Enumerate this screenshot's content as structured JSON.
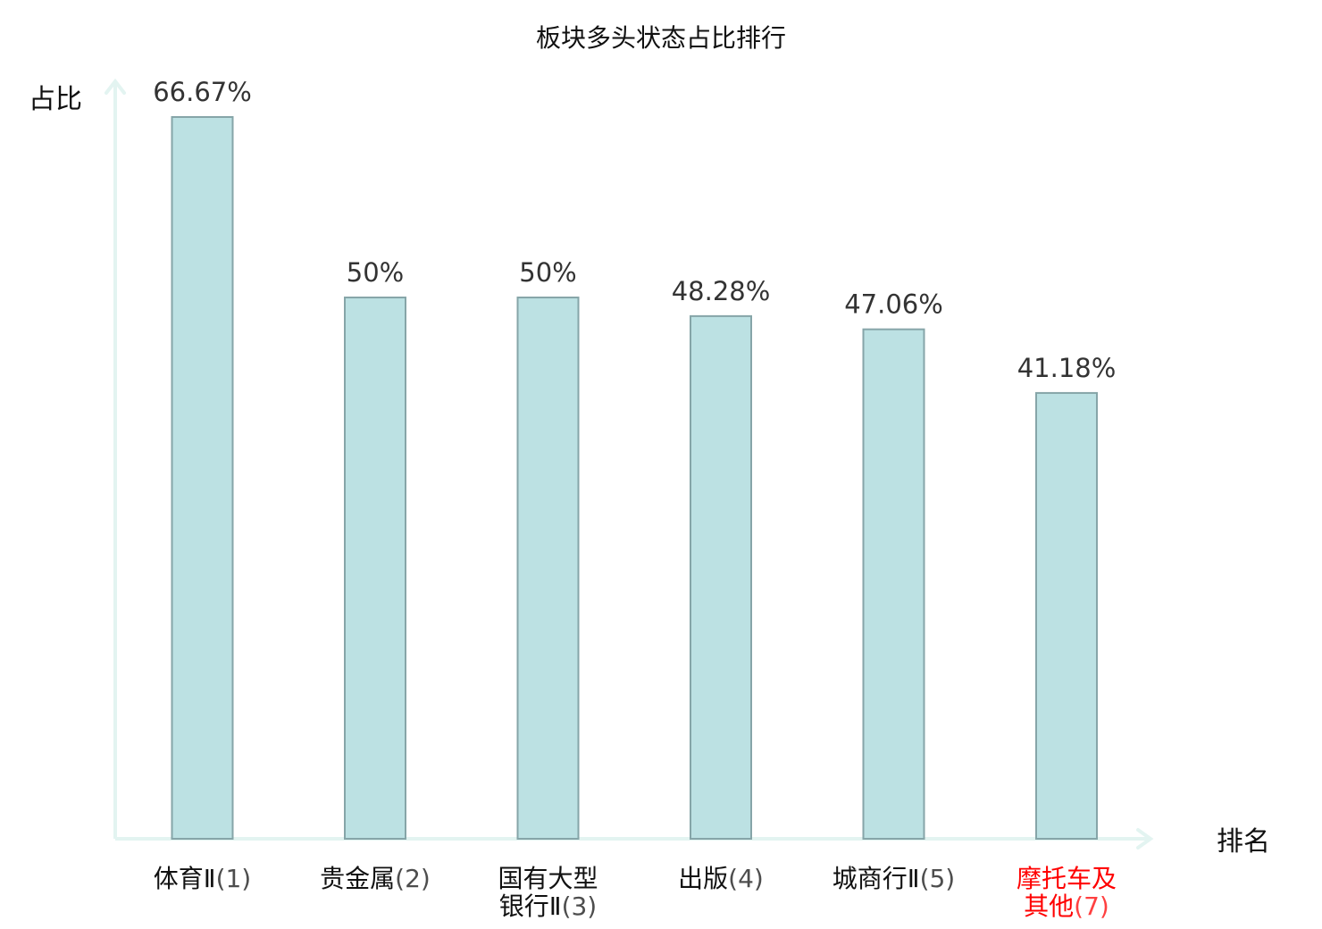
{
  "chart_data": {
    "type": "bar",
    "title": "板块多头状态占比排行",
    "xlabel": "排名",
    "ylabel": "占比",
    "ylim": [
      0,
      70
    ],
    "grid": false,
    "bar_color": "#bce1e3",
    "bar_border_color": "#86a5a8",
    "axis_color": "#e3f4f1",
    "highlight_color": "#ff0000",
    "label_color": "#111111",
    "categories": [
      {
        "lines": [
          "体育Ⅱ(1)"
        ],
        "name": "体育Ⅱ",
        "rank": "(1)",
        "highlight": false
      },
      {
        "lines": [
          "贵金属(2)"
        ],
        "name": "贵金属",
        "rank": "(2)",
        "highlight": false
      },
      {
        "lines": [
          "国有大型",
          "银行Ⅱ(3)"
        ],
        "name": "国有大型银行Ⅱ",
        "rank": "(3)",
        "highlight": false
      },
      {
        "lines": [
          "出版(4)"
        ],
        "name": "出版",
        "rank": "(4)",
        "highlight": false
      },
      {
        "lines": [
          "城商行Ⅱ(5)"
        ],
        "name": "城商行Ⅱ",
        "rank": "(5)",
        "highlight": false
      },
      {
        "lines": [
          "摩托车及",
          "其他(7)"
        ],
        "name": "摩托车及其他",
        "rank": "(7)",
        "highlight": true
      }
    ],
    "values": [
      66.67,
      50,
      50,
      48.28,
      47.06,
      41.18
    ],
    "value_labels": [
      "66.67%",
      "50%",
      "50%",
      "48.28%",
      "47.06%",
      "41.18%"
    ]
  }
}
